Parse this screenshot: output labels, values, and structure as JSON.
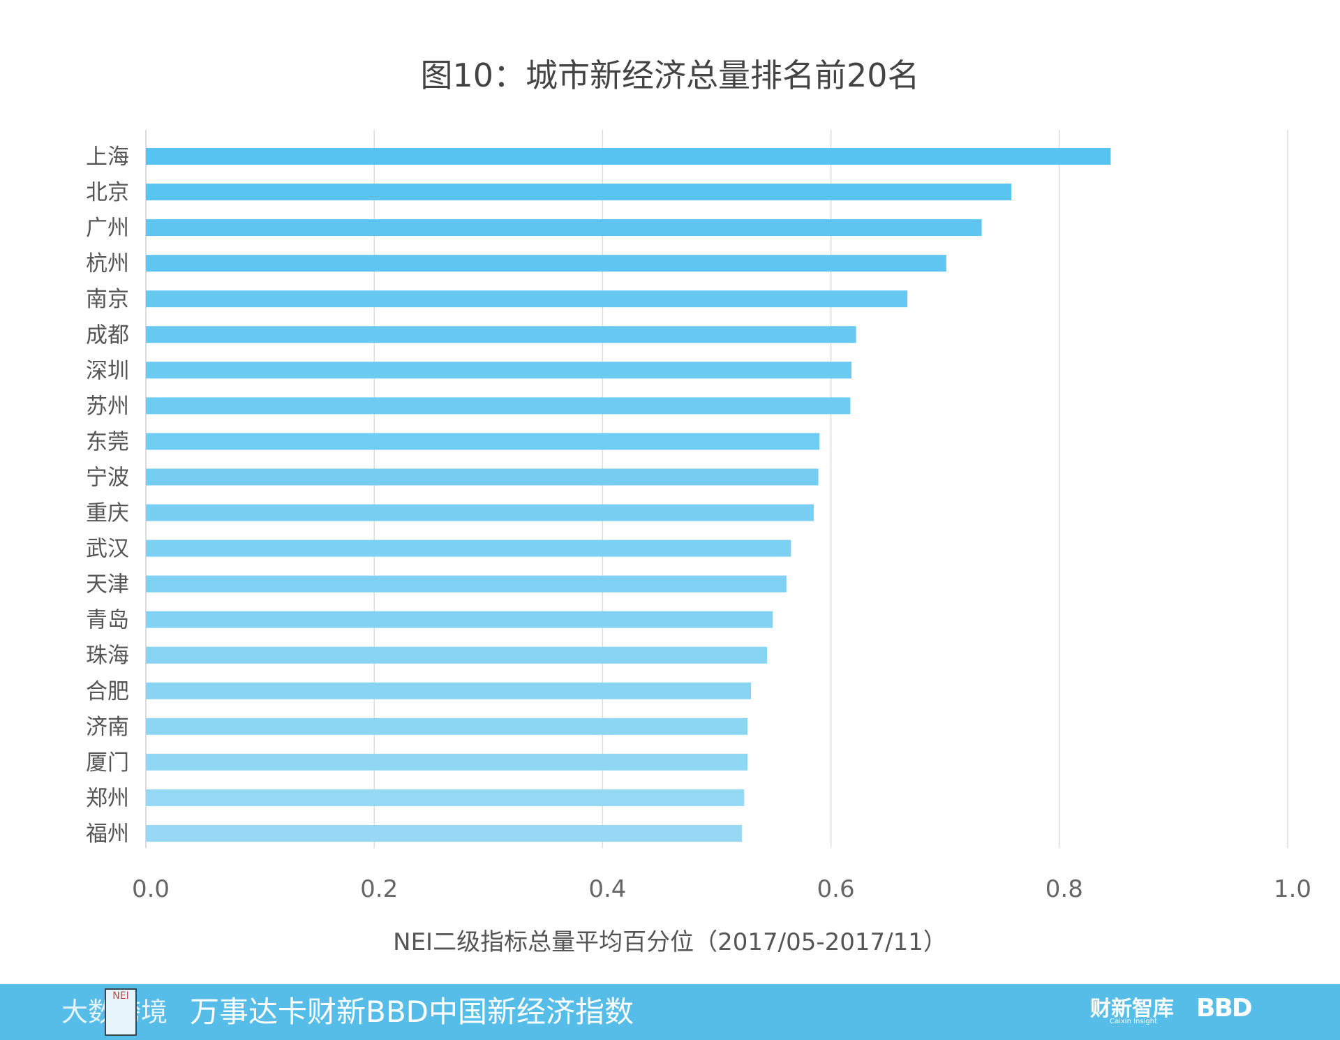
{
  "chart_data": {
    "type": "bar",
    "orientation": "horizontal",
    "title": "图10：城市新经济总量排名前20名",
    "xlabel": "NEI二级指标总量平均百分位（2017/05-2017/11）",
    "ylabel": "",
    "xlim": [
      0,
      1.0
    ],
    "xticks": [
      "0.0",
      "0.2",
      "0.4",
      "0.6",
      "0.8",
      "1.0"
    ],
    "grid": true,
    "categories": [
      "上海",
      "北京",
      "广州",
      "杭州",
      "南京",
      "成都",
      "深圳",
      "苏州",
      "东莞",
      "宁波",
      "重庆",
      "武汉",
      "天津",
      "青岛",
      "珠海",
      "合肥",
      "济南",
      "厦门",
      "郑州",
      "福州"
    ],
    "values": [
      0.845,
      0.758,
      0.732,
      0.701,
      0.667,
      0.622,
      0.618,
      0.617,
      0.59,
      0.589,
      0.585,
      0.565,
      0.561,
      0.549,
      0.544,
      0.53,
      0.527,
      0.527,
      0.524,
      0.522
    ],
    "color_top": "#56c3f0",
    "color_bottom": "#97d9f4"
  },
  "footer": {
    "logo_text": "大数跨境",
    "logo_badge": "NEI",
    "title": "万事达卡财新BBD中国新经济指数",
    "brand_1": "财新智库",
    "brand_1_sub": "Caixin Insight",
    "brand_2": "BBD"
  }
}
